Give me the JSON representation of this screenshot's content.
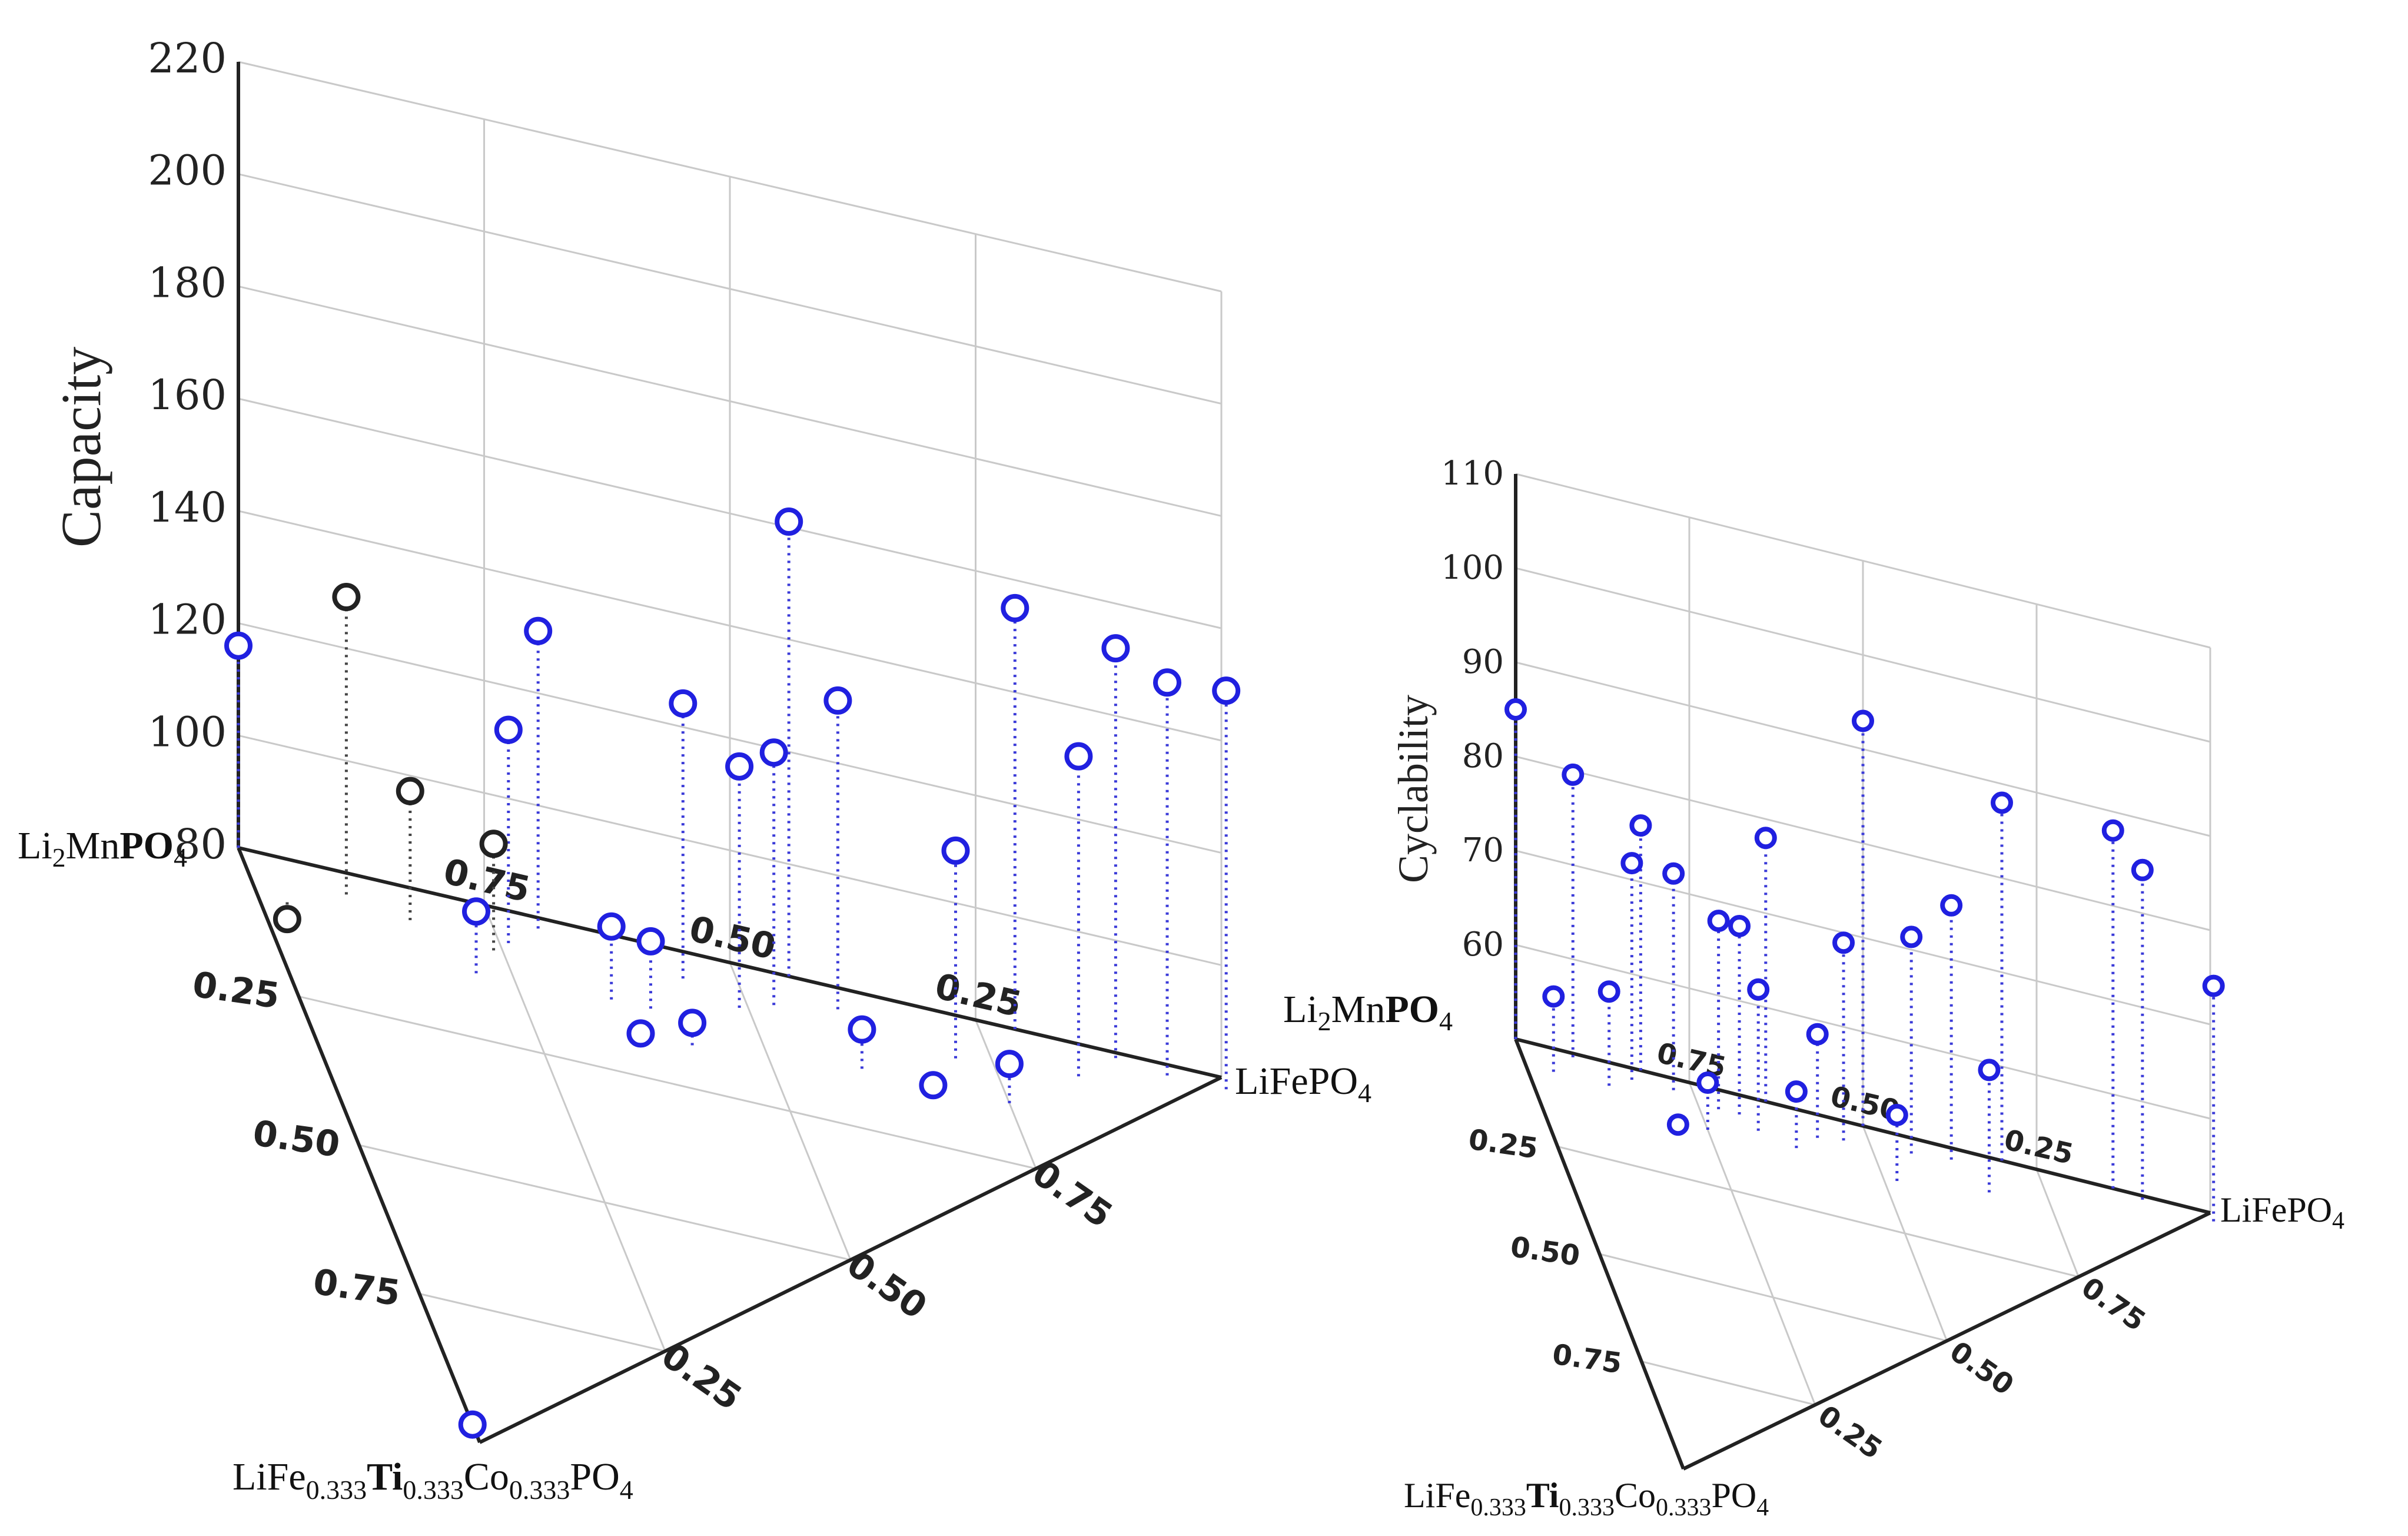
{
  "chart_data": [
    {
      "type": "scatter",
      "projection": "3d-ternary-stem",
      "zlabel": "Capacity",
      "zlim": [
        80,
        220
      ],
      "z_ticks": [
        "220",
        "200",
        "180",
        "160",
        "140",
        "120",
        "100",
        "80"
      ],
      "base_ticks_back": [
        "0.75",
        "0.50",
        "0.25"
      ],
      "base_ticks_left": [
        "0.25",
        "0.50",
        "0.75"
      ],
      "base_ticks_right": [
        "0.25",
        "0.50",
        "0.75"
      ],
      "corners": {
        "top": "Li2MnPO4",
        "right": "LiFePO4",
        "front": "LiFe0.333Ti0.333Co0.333PO4",
        "back_right": "Li2MnPO4"
      },
      "points": [
        {
          "u": 0.0,
          "v": 0.0,
          "z": 116,
          "color": "blue"
        },
        {
          "u": 0.03,
          "v": 0.08,
          "z": 77,
          "color": "dark"
        },
        {
          "u": 0.1,
          "v": 0.04,
          "z": 133,
          "color": "dark"
        },
        {
          "u": 0.16,
          "v": 0.06,
          "z": 103,
          "color": "dark"
        },
        {
          "u": 0.21,
          "v": 0.13,
          "z": 91,
          "color": "blue"
        },
        {
          "u": 0.24,
          "v": 0.08,
          "z": 99,
          "color": "dark"
        },
        {
          "u": 0.26,
          "v": 0.06,
          "z": 118,
          "color": "blue"
        },
        {
          "u": 0.3,
          "v": 0.02,
          "z": 133,
          "color": "blue"
        },
        {
          "u": 0.35,
          "v": 0.12,
          "z": 93,
          "color": "blue"
        },
        {
          "u": 0.37,
          "v": 0.16,
          "z": 79,
          "color": "blue"
        },
        {
          "u": 0.39,
          "v": 0.12,
          "z": 92,
          "color": "blue"
        },
        {
          "u": 0.42,
          "v": 0.17,
          "z": 84,
          "color": "blue"
        },
        {
          "u": 0.44,
          "v": 0.05,
          "z": 129,
          "color": "blue"
        },
        {
          "u": 0.49,
          "v": 0.08,
          "z": 123,
          "color": "blue"
        },
        {
          "u": 0.53,
          "v": 0.06,
          "z": 125,
          "color": "blue"
        },
        {
          "u": 0.56,
          "v": 0.0,
          "z": 161,
          "color": "blue"
        },
        {
          "u": 0.6,
          "v": 0.14,
          "z": 87,
          "color": "blue"
        },
        {
          "u": 0.6,
          "v": 0.04,
          "z": 135,
          "color": "blue"
        },
        {
          "u": 0.67,
          "v": 0.15,
          "z": 81,
          "color": "blue"
        },
        {
          "u": 0.71,
          "v": 0.08,
          "z": 117,
          "color": "blue"
        },
        {
          "u": 0.75,
          "v": 0.14,
          "z": 87,
          "color": "blue"
        },
        {
          "u": 0.79,
          "v": 0.0,
          "z": 155,
          "color": "blue"
        },
        {
          "u": 0.84,
          "v": 0.06,
          "z": 137,
          "color": "blue"
        },
        {
          "u": 0.89,
          "v": 0.01,
          "z": 153,
          "color": "blue"
        },
        {
          "u": 0.94,
          "v": 0.02,
          "z": 150,
          "color": "blue"
        },
        {
          "u": 1.0,
          "v": 0.02,
          "z": 151,
          "color": "blue"
        },
        {
          "u": 0.0,
          "v": 0.97,
          "z": 80,
          "color": "blue"
        }
      ]
    },
    {
      "type": "scatter",
      "projection": "3d-ternary-stem",
      "zlabel": "Cyclability",
      "zlim": [
        50,
        110
      ],
      "z_ticks": [
        "110",
        "100",
        "90",
        "80",
        "70",
        "60"
      ],
      "base_ticks_back": [
        "0.75",
        "0.50",
        "0.25"
      ],
      "base_ticks_left": [
        "0.25",
        "0.50",
        "0.75"
      ],
      "base_ticks_right": [
        "0.25",
        "0.50",
        "0.75"
      ],
      "corners": {
        "top": "Li2MnPO4",
        "right": "LiFePO4",
        "front": "LiFe0.333Ti0.333Co0.333PO4"
      },
      "points": [
        {
          "u": 0.0,
          "v": 0.0,
          "z": 85
        },
        {
          "u": 0.04,
          "v": 0.06,
          "z": 58
        },
        {
          "u": 0.08,
          "v": 0.01,
          "z": 80
        },
        {
          "u": 0.12,
          "v": 0.06,
          "z": 60
        },
        {
          "u": 0.16,
          "v": 0.03,
          "z": 73
        },
        {
          "u": 0.18,
          "v": 0.0,
          "z": 76
        },
        {
          "u": 0.2,
          "v": 0.14,
          "z": 51
        },
        {
          "u": 0.22,
          "v": 0.03,
          "z": 73
        },
        {
          "u": 0.25,
          "v": 0.11,
          "z": 55
        },
        {
          "u": 0.28,
          "v": 0.05,
          "z": 70
        },
        {
          "u": 0.31,
          "v": 0.05,
          "z": 70
        },
        {
          "u": 0.33,
          "v": 0.08,
          "z": 65
        },
        {
          "u": 0.36,
          "v": 0.0,
          "z": 78
        },
        {
          "u": 0.38,
          "v": 0.1,
          "z": 56
        },
        {
          "u": 0.42,
          "v": 0.06,
          "z": 61
        },
        {
          "u": 0.46,
          "v": 0.05,
          "z": 71
        },
        {
          "u": 0.5,
          "v": 0.0,
          "z": 93
        },
        {
          "u": 0.52,
          "v": 0.12,
          "z": 57
        },
        {
          "u": 0.56,
          "v": 0.04,
          "z": 73
        },
        {
          "u": 0.62,
          "v": 0.03,
          "z": 77
        },
        {
          "u": 0.66,
          "v": 0.09,
          "z": 63
        },
        {
          "u": 0.7,
          "v": 0.0,
          "z": 88
        },
        {
          "u": 0.86,
          "v": 0.0,
          "z": 88
        },
        {
          "u": 0.9,
          "v": 0.01,
          "z": 85
        },
        {
          "u": 1.0,
          "v": 0.02,
          "z": 75
        }
      ]
    }
  ],
  "colors": {
    "series": "#2020e0",
    "dark_marker": "#222222",
    "grid": "#c9c9c9",
    "frame": "#222222"
  }
}
